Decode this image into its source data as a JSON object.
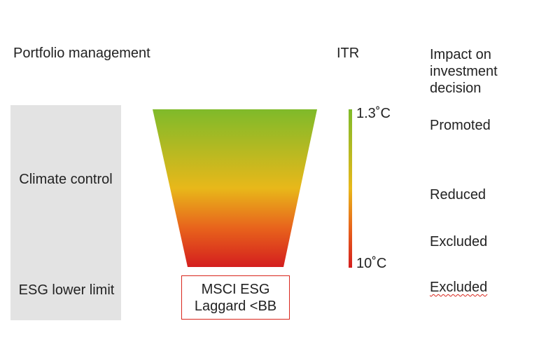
{
  "headers": {
    "portfolio": "Portfolio management",
    "itr": "ITR",
    "impact": "Impact on investment decision"
  },
  "rows": {
    "climate": "Climate control",
    "esg": "ESG lower limit"
  },
  "funnel_box": "MSCI ESG Laggard <BB",
  "itr_scale": {
    "top": "1.3˚C",
    "bottom": "10˚C"
  },
  "impacts": [
    "Promoted",
    "Reduced",
    "Excluded",
    "Excluded"
  ]
}
